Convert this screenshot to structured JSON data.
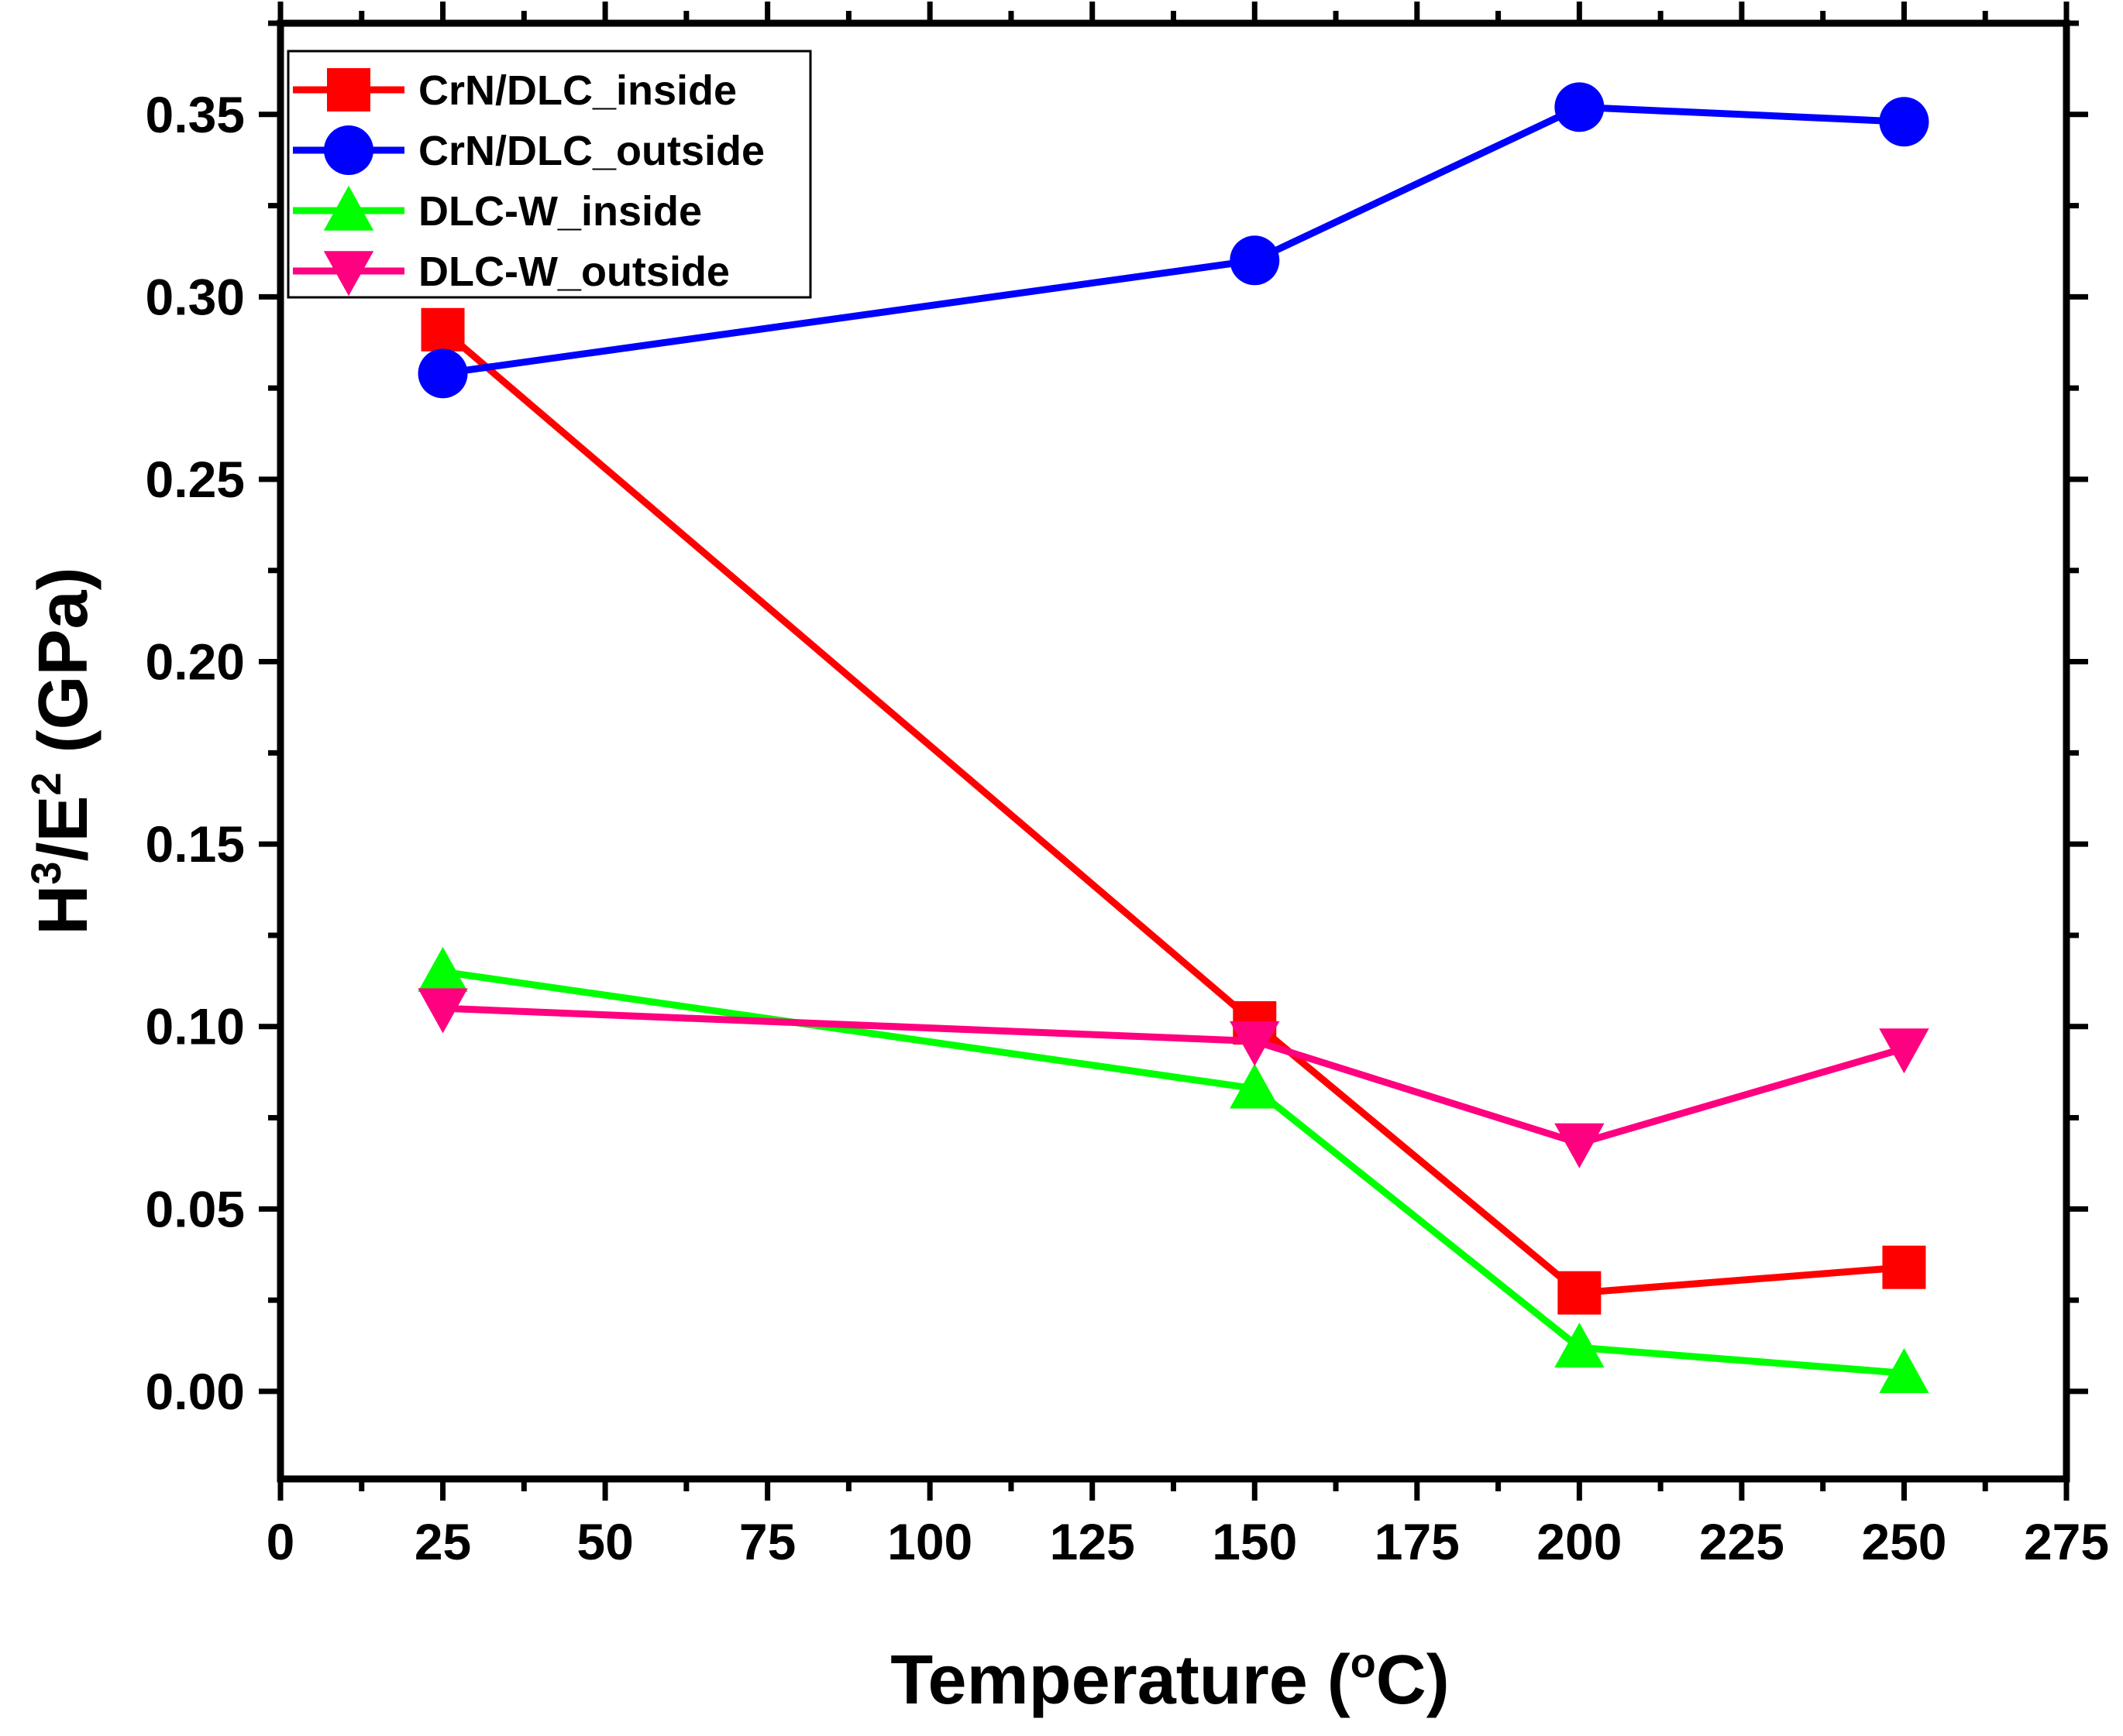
{
  "chart_data": {
    "type": "line",
    "title": "",
    "xlabel": "Temperature (°C)",
    "xlabel_parts": {
      "pre": "Temperature (",
      "sup": "o",
      "post": "C)"
    },
    "ylabel": "H3/E2 (GPa)",
    "ylabel_parts": {
      "h": "H",
      "h_sup": "3",
      "mid": "/E",
      "e_sup": "2",
      "post": " (GPa)"
    },
    "xlim": [
      0,
      275
    ],
    "ylim": [
      -0.024,
      0.375
    ],
    "xticks": [
      0,
      25,
      50,
      75,
      100,
      125,
      150,
      175,
      200,
      225,
      250,
      275
    ],
    "xtick_labels": [
      "0",
      "25",
      "50",
      "75",
      "100",
      "125",
      "150",
      "175",
      "200",
      "225",
      "250",
      "275"
    ],
    "yticks": [
      0.0,
      0.05,
      0.1,
      0.15,
      0.2,
      0.25,
      0.3,
      0.35
    ],
    "ytick_labels": [
      "0.00",
      "0.05",
      "0.10",
      "0.15",
      "0.20",
      "0.25",
      "0.30",
      "0.35"
    ],
    "legend_position": "top-left",
    "x": [
      25,
      150,
      200,
      250
    ],
    "series": [
      {
        "name": "CrN/DLC_inside",
        "color": "#ff0000",
        "marker": "square",
        "values": [
          0.291,
          0.101,
          0.027,
          0.034
        ]
      },
      {
        "name": "CrN/DLC_outside",
        "color": "#0000ff",
        "marker": "circle",
        "values": [
          0.279,
          0.31,
          0.352,
          0.348
        ]
      },
      {
        "name": "DLC-W_inside",
        "color": "#00ff00",
        "marker": "triangle-up",
        "values": [
          0.115,
          0.083,
          0.012,
          0.005
        ]
      },
      {
        "name": "DLC-W_outside",
        "color": "#ff0080",
        "marker": "triangle-down",
        "values": [
          0.105,
          0.096,
          0.068,
          0.094
        ]
      }
    ]
  }
}
